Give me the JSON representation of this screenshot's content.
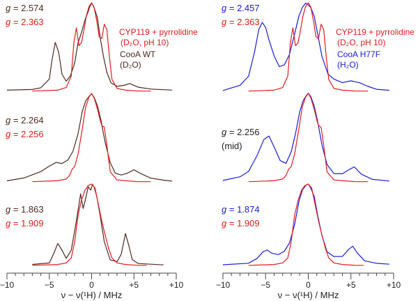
{
  "colors": {
    "red": "#e8191c",
    "brown": "#4a2a22",
    "blue": "#1a1adf",
    "black": "#222222",
    "axis": "#444444"
  },
  "chart_data": [
    {
      "type": "line",
      "panel": "left",
      "xlabel": "ν − ν(¹H) / MHz",
      "xlim": [
        -10,
        10
      ],
      "xticks": [
        "−10",
        "−5",
        "0",
        "+5",
        "+10"
      ],
      "legend": {
        "red_line1": "CYP119 + pyrrolidine",
        "red_line2": "(D₂O, pH 10)",
        "dark_line1": "CooA WT",
        "dark_line2": "(D₂O)"
      },
      "traces": [
        {
          "g_label": "g",
          "g_dark": "= 2.574",
          "g_red": "= 2.363",
          "series": [
            {
              "name": "CooA WT (D2O)",
              "color": "brown",
              "x": [
                -10,
                -7,
                -6,
                -5,
                -4.7,
                -4.3,
                -3.9,
                -3.5,
                -3,
                -2.5,
                -2,
                -1.6,
                -1.2,
                -0.8,
                -0.4,
                -0.2,
                0,
                0.2,
                0.4,
                0.7,
                1,
                1.4,
                1.8,
                2.3,
                3,
                3.8,
                4.5,
                5.5,
                7,
                9.5
              ],
              "y": [
                0.02,
                0.03,
                0.05,
                0.15,
                0.35,
                0.56,
                0.45,
                0.2,
                0.12,
                0.18,
                0.32,
                0.55,
                0.66,
                0.8,
                0.9,
                0.96,
                1.0,
                0.97,
                0.92,
                0.83,
                0.62,
                0.4,
                0.22,
                0.1,
                0.06,
                0.07,
                0.09,
                0.05,
                0.03,
                0.02
              ]
            },
            {
              "name": "CYP119 + pyrrolidine",
              "color": "red",
              "x": [
                -7,
                -4,
                -3,
                -2.4,
                -2.1,
                -1.8,
                -1.5,
                -1.2,
                -0.9,
                -0.6,
                -0.3,
                0,
                0.3,
                0.6,
                0.9,
                1.2,
                1.5,
                1.8,
                2.1,
                2.4,
                3,
                4,
                5.5,
                7
              ],
              "y": [
                0.01,
                0.02,
                0.05,
                0.18,
                0.55,
                0.72,
                0.52,
                0.55,
                0.7,
                0.86,
                0.96,
                1.0,
                0.95,
                0.8,
                0.62,
                0.6,
                0.76,
                0.7,
                0.4,
                0.14,
                0.04,
                0.02,
                0.01,
                0.01
              ]
            }
          ]
        },
        {
          "g_label": "g",
          "g_dark": "= 2.264",
          "g_red": "= 2.256",
          "series": [
            {
              "name": "CooA WT (D2O)",
              "color": "brown",
              "x": [
                -10,
                -8,
                -6,
                -5,
                -4.2,
                -3.5,
                -2.8,
                -2.2,
                -1.6,
                -1.1,
                -0.7,
                -0.3,
                0,
                0.3,
                0.7,
                1.1,
                1.6,
                2.2,
                2.8,
                3.5,
                4.2,
                5,
                5.8,
                7,
                8.5,
                9.5
              ],
              "y": [
                0.02,
                0.05,
                0.12,
                0.18,
                0.22,
                0.21,
                0.25,
                0.35,
                0.55,
                0.8,
                0.92,
                0.97,
                1.0,
                0.96,
                0.86,
                0.7,
                0.45,
                0.22,
                0.1,
                0.08,
                0.1,
                0.14,
                0.1,
                0.05,
                0.03,
                0.02
              ]
            },
            {
              "name": "CYP119 + pyrrolidine",
              "color": "red",
              "x": [
                -7,
                -4,
                -3,
                -2.6,
                -2.3,
                -2,
                -1.6,
                -1.1,
                -0.7,
                -0.3,
                0,
                0.3,
                0.7,
                1.0,
                1.2,
                1.5,
                1.8,
                2.2,
                3,
                4,
                5.5,
                7
              ],
              "y": [
                0.01,
                0.02,
                0.04,
                0.08,
                0.15,
                0.18,
                0.32,
                0.6,
                0.85,
                0.96,
                1.0,
                0.95,
                0.82,
                0.7,
                0.64,
                0.62,
                0.42,
                0.12,
                0.03,
                0.02,
                0.01,
                0.01
              ]
            }
          ]
        },
        {
          "g_label": "g",
          "g_dark": "= 1.863",
          "g_red": "= 1.909",
          "series": [
            {
              "name": "CooA WT (D2O)",
              "color": "brown",
              "x": [
                -7,
                -5,
                -4.5,
                -4.0,
                -3.5,
                -3,
                -2.4,
                -1.8,
                -1.3,
                -1.0,
                -0.7,
                -0.4,
                -0.1,
                0.1,
                0.3,
                0.6,
                1.0,
                1.5,
                2.2,
                3,
                3.5,
                4.0,
                4.4,
                4.8,
                5.5,
                7,
                8.5
              ],
              "y": [
                0.02,
                0.04,
                0.15,
                0.28,
                0.2,
                0.1,
                0.2,
                0.55,
                0.88,
                0.7,
                0.82,
                0.96,
                0.92,
                0.99,
                0.96,
                0.85,
                0.62,
                0.3,
                0.08,
                0.06,
                0.15,
                0.4,
                0.25,
                0.08,
                0.03,
                0.02,
                0.01
              ]
            },
            {
              "name": "CYP119 + pyrrolidine",
              "color": "red",
              "x": [
                -7,
                -4,
                -3,
                -2.4,
                -2,
                -1.6,
                -1.2,
                -0.8,
                -0.4,
                0,
                0.4,
                0.8,
                1.2,
                1.6,
                2.0,
                2.4,
                3,
                4,
                5.5,
                6.5
              ],
              "y": [
                0.01,
                0.02,
                0.04,
                0.1,
                0.3,
                0.62,
                0.8,
                0.92,
                0.98,
                1.0,
                0.95,
                0.75,
                0.55,
                0.38,
                0.22,
                0.1,
                0.04,
                0.02,
                0.01,
                0.01
              ]
            }
          ]
        }
      ]
    },
    {
      "type": "line",
      "panel": "right",
      "xlabel": "ν − ν(¹H) / MHz",
      "xlim": [
        -10,
        10
      ],
      "xticks": [
        "−10",
        "−5",
        "0",
        "+5",
        "+10"
      ],
      "legend": {
        "red_line1": "CYP119 + pyrrolidine",
        "red_line2": "(D₂O, pH 10)",
        "blue_line1": "CooA H77F",
        "blue_line2": "(H₂O)"
      },
      "traces": [
        {
          "g_label": "g",
          "g_dark": "= 2.457",
          "g_red": "= 2.363",
          "dark_color": "blue",
          "series": [
            {
              "name": "CooA H77F (H2O)",
              "color": "blue",
              "x": [
                -10,
                -8,
                -7,
                -6.3,
                -5.8,
                -5.4,
                -5.0,
                -4.6,
                -4.0,
                -3.4,
                -2.8,
                -2.2,
                -1.6,
                -1.1,
                -0.7,
                -0.3,
                0,
                0.3,
                0.7,
                1.1,
                1.6,
                2.3,
                3,
                4,
                5,
                6,
                7,
                8,
                9.5
              ],
              "y": [
                0.02,
                0.08,
                0.18,
                0.45,
                0.7,
                0.78,
                0.72,
                0.58,
                0.4,
                0.28,
                0.3,
                0.42,
                0.65,
                0.85,
                0.95,
                1.0,
                0.98,
                0.95,
                0.85,
                0.65,
                0.4,
                0.2,
                0.14,
                0.1,
                0.12,
                0.1,
                0.06,
                0.03,
                0.02
              ]
            },
            {
              "name": "CYP119 + pyrrolidine",
              "color": "red",
              "x": [
                -7,
                -4,
                -3,
                -2.4,
                -2.1,
                -1.8,
                -1.5,
                -1.2,
                -0.9,
                -0.6,
                -0.3,
                0,
                0.3,
                0.6,
                0.9,
                1.2,
                1.5,
                1.8,
                2.1,
                2.4,
                3,
                4,
                5.5,
                7
              ],
              "y": [
                0.01,
                0.02,
                0.05,
                0.18,
                0.55,
                0.72,
                0.52,
                0.55,
                0.7,
                0.86,
                0.96,
                1.0,
                0.95,
                0.8,
                0.62,
                0.6,
                0.76,
                0.7,
                0.4,
                0.14,
                0.04,
                0.02,
                0.01,
                0.01
              ]
            }
          ]
        },
        {
          "g_label": "g",
          "g_dark": "= 2.256",
          "g_note": "(mid)",
          "dark_color": "black",
          "series": [
            {
              "name": "CooA H77F (H2O)",
              "color": "blue",
              "x": [
                -10,
                -8,
                -7,
                -6,
                -5.2,
                -4.6,
                -4.0,
                -3.3,
                -2.6,
                -2.0,
                -1.5,
                -1.0,
                -0.6,
                -0.2,
                0,
                0.3,
                0.7,
                1.1,
                1.6,
                2.2,
                3,
                4,
                4.8,
                5.4,
                6.2,
                7.5,
                9.5
              ],
              "y": [
                0.02,
                0.06,
                0.12,
                0.3,
                0.48,
                0.52,
                0.4,
                0.25,
                0.22,
                0.35,
                0.55,
                0.8,
                0.92,
                0.98,
                1.0,
                0.96,
                0.85,
                0.68,
                0.42,
                0.2,
                0.1,
                0.1,
                0.15,
                0.18,
                0.1,
                0.04,
                0.02
              ]
            },
            {
              "name": "CYP119 + pyrrolidine",
              "color": "red",
              "x": [
                -7,
                -4,
                -3,
                -2.6,
                -2.3,
                -2,
                -1.6,
                -1.1,
                -0.7,
                -0.3,
                0,
                0.3,
                0.7,
                1.0,
                1.2,
                1.5,
                1.8,
                2.2,
                3,
                4,
                5.5,
                7
              ],
              "y": [
                0.01,
                0.02,
                0.04,
                0.08,
                0.15,
                0.18,
                0.32,
                0.6,
                0.85,
                0.96,
                1.0,
                0.95,
                0.82,
                0.7,
                0.64,
                0.62,
                0.42,
                0.12,
                0.03,
                0.02,
                0.01,
                0.01
              ]
            }
          ]
        },
        {
          "g_label": "g",
          "g_dark": "= 1.874",
          "g_red": "= 1.909",
          "dark_color": "blue",
          "series": [
            {
              "name": "CooA H77F (H2O)",
              "color": "blue",
              "x": [
                -10,
                -7,
                -6,
                -5.3,
                -4.8,
                -4.3,
                -3.5,
                -2.8,
                -2.2,
                -1.6,
                -1.1,
                -0.7,
                -0.3,
                0,
                0.3,
                0.7,
                1.1,
                1.6,
                2.2,
                3,
                4,
                4.7,
                5.2,
                5.8,
                6.6,
                8,
                9.5
              ],
              "y": [
                0.02,
                0.04,
                0.1,
                0.18,
                0.2,
                0.16,
                0.14,
                0.18,
                0.28,
                0.5,
                0.78,
                0.92,
                0.98,
                1.0,
                0.95,
                0.85,
                0.62,
                0.38,
                0.18,
                0.12,
                0.12,
                0.2,
                0.24,
                0.15,
                0.06,
                0.03,
                0.02
              ]
            },
            {
              "name": "CYP119 + pyrrolidine",
              "color": "red",
              "x": [
                -7,
                -4,
                -3,
                -2.4,
                -2,
                -1.6,
                -1.2,
                -0.8,
                -0.4,
                0,
                0.4,
                0.8,
                1.2,
                1.6,
                2.0,
                2.4,
                3,
                4,
                5.5,
                6.5
              ],
              "y": [
                0.01,
                0.02,
                0.04,
                0.1,
                0.3,
                0.62,
                0.8,
                0.92,
                0.98,
                1.0,
                0.95,
                0.75,
                0.55,
                0.38,
                0.22,
                0.1,
                0.04,
                0.02,
                0.01,
                0.01
              ]
            }
          ]
        }
      ]
    }
  ]
}
